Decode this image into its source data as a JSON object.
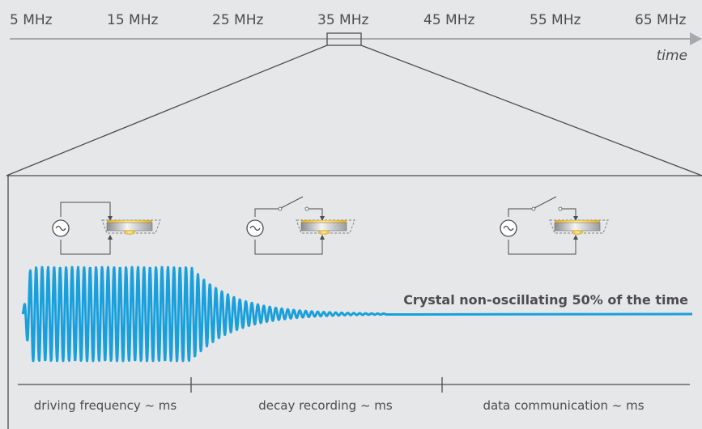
{
  "frequency_axis": {
    "ticks": [
      "5 MHz",
      "15 MHz",
      "25 MHz",
      "35 MHz",
      "45 MHz",
      "55 MHz",
      "65 MHz"
    ],
    "axis_label": "time"
  },
  "crystal_note": "Crystal non-oscillating 50% of the time",
  "phases": [
    "driving frequency ~ ms",
    "decay recording ~ ms",
    "data communication ~ ms"
  ],
  "colors": {
    "background": "#e6e7e8",
    "text": "#4d4d4f",
    "signal": "#19a0dc",
    "axis": "#a7a9ac",
    "gold": "#d8a11a"
  },
  "circuits": [
    {
      "source_icon": "ac-source-icon",
      "switch": "closed"
    },
    {
      "source_icon": "ac-source-icon",
      "switch": "open"
    },
    {
      "source_icon": "ac-source-icon",
      "switch": "open"
    }
  ]
}
